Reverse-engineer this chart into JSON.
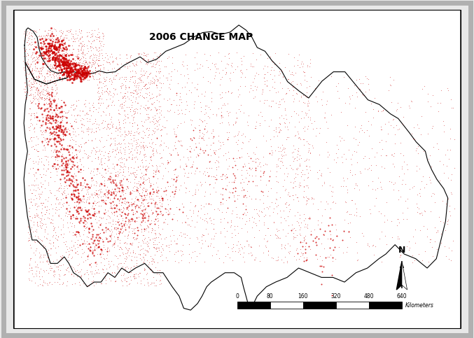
{
  "title": "2006 CHANGE MAP",
  "title_fontsize": 10,
  "title_fontweight": "bold",
  "background_color": "#e8e8e8",
  "map_background": "#ffffff",
  "outer_border_color": "#b0b0b0",
  "inner_border_color": "#000000",
  "outline_color": "#000000",
  "dot_color": "#cc0000",
  "scale_bar_labels": [
    "0",
    "80",
    "160",
    "320",
    "480",
    "640"
  ],
  "scale_bar_unit": "Kilometers",
  "seed": 42,
  "xlim": [
    25.6,
    45.0
  ],
  "ylim": [
    35.6,
    42.4
  ]
}
